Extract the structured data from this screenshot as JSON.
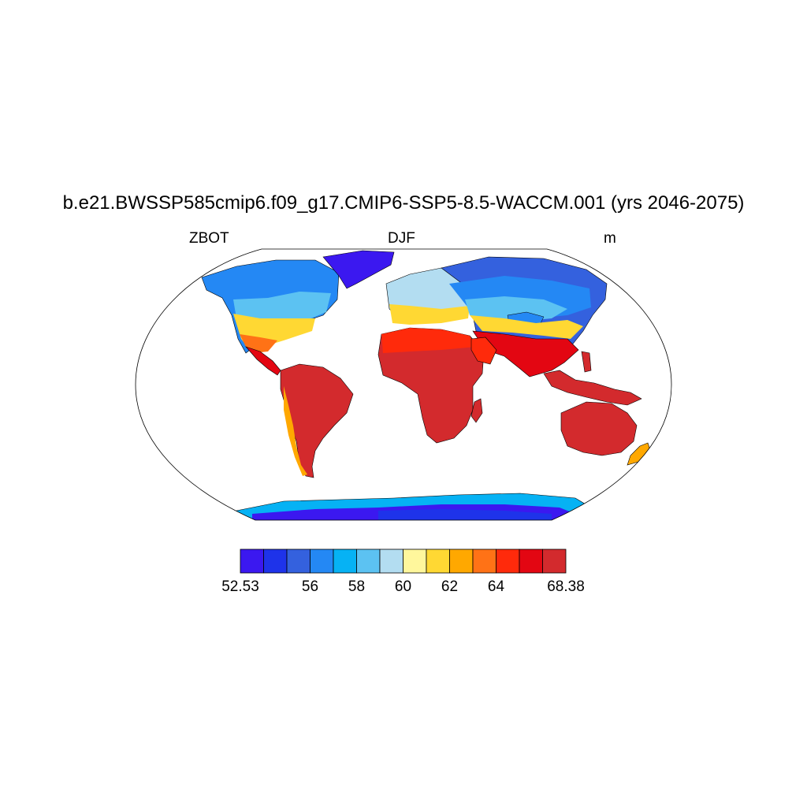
{
  "title": "b.e21.BWSSP585cmip6.f09_g17.CMIP6-SSP5-8.5-WACCM.001 (yrs 2046-2075)",
  "left_string": "ZBOT",
  "center_string": "DJF",
  "right_string": "m",
  "projection": "Robinson",
  "colorbar": {
    "orientation": "horizontal",
    "colors": [
      "#3b18f0",
      "#1e33ea",
      "#3461de",
      "#2488f4",
      "#06b2f4",
      "#5cc2f2",
      "#b3ddf1",
      "#fff79c",
      "#ffd833",
      "#ffa800",
      "#ff7216",
      "#ff2a0b",
      "#e30612",
      "#d32a2d"
    ],
    "labels": [
      "52.53",
      "56",
      "58",
      "60",
      "62",
      "64",
      "68.38"
    ],
    "label_boundaries": [
      0,
      3,
      5,
      7,
      9,
      11,
      14
    ]
  }
}
